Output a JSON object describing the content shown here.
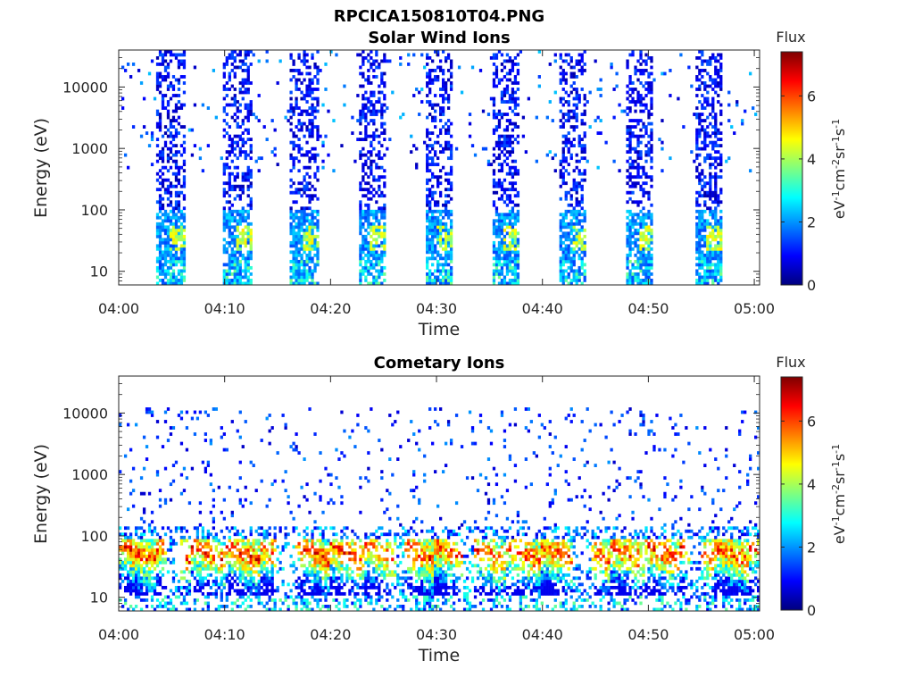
{
  "figure": {
    "title": "RPCICA150810T04.PNG"
  },
  "colorbar": {
    "label_top": "Flux",
    "units_label": "eV-1cm-2sr-1s-1",
    "ticks": [
      "0",
      "2",
      "4",
      "6"
    ],
    "range": [
      0,
      7.4
    ],
    "colors": [
      "#00007f",
      "#0000ff",
      "#007fff",
      "#00ffff",
      "#7fff7f",
      "#ffff00",
      "#ff7f00",
      "#ff0000",
      "#7f0000"
    ]
  },
  "chart_data": [
    {
      "type": "heatmap",
      "title": "Solar Wind Ions",
      "xlabel": "Time",
      "ylabel": "Energy (eV)",
      "x_ticks": [
        "04:00",
        "04:10",
        "04:20",
        "04:30",
        "04:40",
        "04:50",
        "05:00"
      ],
      "y_ticks": [
        "10",
        "100",
        "1000",
        "10000"
      ],
      "y_scale": "log",
      "ylim": [
        6,
        40000
      ],
      "xlim_minutes": [
        0,
        60.5
      ],
      "colorbar_range": [
        0,
        7.4
      ],
      "bursts_start_minutes": [
        3.5,
        9.8,
        16.1,
        22.5,
        28.8,
        35.1,
        41.5,
        47.8,
        54.2
      ],
      "burst_duration_minutes": 2.6,
      "low_energy_peak_eV": 35,
      "peak_flux": 4.8
    },
    {
      "type": "heatmap",
      "title": "Cometary Ions",
      "xlabel": "Time",
      "ylabel": "Energy (eV)",
      "x_ticks": [
        "04:00",
        "04:10",
        "04:20",
        "04:30",
        "04:40",
        "04:50",
        "05:00"
      ],
      "y_ticks": [
        "10",
        "100",
        "1000",
        "10000"
      ],
      "y_scale": "log",
      "ylim": [
        6,
        40000
      ],
      "xlim_minutes": [
        0,
        60.5
      ],
      "colorbar_range": [
        0,
        7.4
      ],
      "core_energy_range_eV": [
        15,
        60
      ],
      "peak_flux": 7.2
    }
  ]
}
